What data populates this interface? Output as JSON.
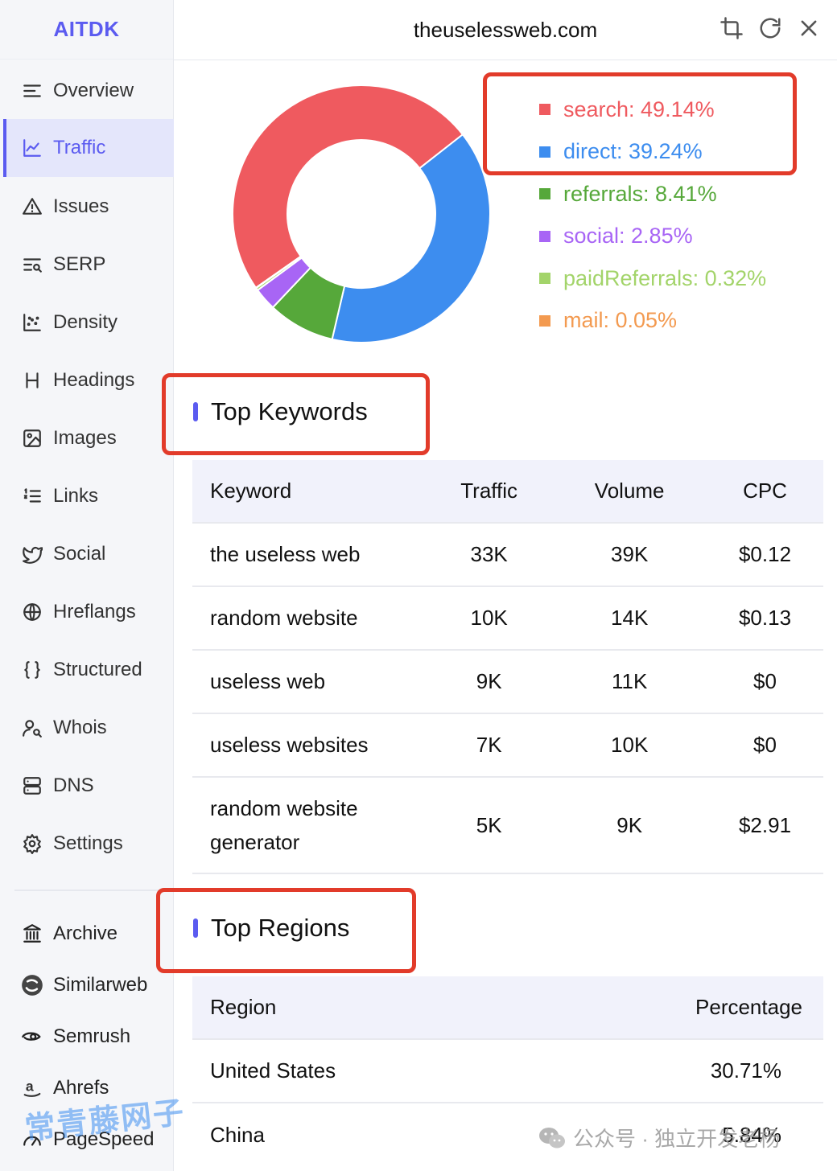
{
  "brand": "AITDK",
  "site": "theuselessweb.com",
  "sidebar": {
    "items": [
      {
        "label": "Overview",
        "icon": "list-icon"
      },
      {
        "label": "Traffic",
        "icon": "line-chart-icon",
        "active": true
      },
      {
        "label": "Issues",
        "icon": "warning-triangle-icon"
      },
      {
        "label": "SERP",
        "icon": "serp-search-icon"
      },
      {
        "label": "Density",
        "icon": "scatter-icon"
      },
      {
        "label": "Headings",
        "icon": "heading-h-icon"
      },
      {
        "label": "Images",
        "icon": "image-icon"
      },
      {
        "label": "Links",
        "icon": "numbered-list-icon"
      },
      {
        "label": "Social",
        "icon": "twitter-bird-icon"
      },
      {
        "label": "Hreflangs",
        "icon": "globe-icon"
      },
      {
        "label": "Structured",
        "icon": "braces-icon"
      },
      {
        "label": "Whois",
        "icon": "user-search-icon"
      },
      {
        "label": "DNS",
        "icon": "server-icon"
      },
      {
        "label": "Settings",
        "icon": "gear-icon"
      }
    ],
    "external": [
      {
        "label": "Archive",
        "icon": "archive-columns-icon"
      },
      {
        "label": "Similarweb",
        "icon": "similarweb-logo-icon"
      },
      {
        "label": "Semrush",
        "icon": "semrush-logo-icon"
      },
      {
        "label": "Ahrefs",
        "icon": "ahrefs-logo-icon"
      },
      {
        "label": "PageSpeed",
        "icon": "pagespeed-icon"
      }
    ]
  },
  "header_icons": [
    "crop-icon",
    "refresh-icon",
    "close-icon"
  ],
  "chart_data": {
    "type": "pie",
    "donut": true,
    "series": [
      {
        "name": "search",
        "value": 49.14,
        "label": "search: 49.14%",
        "color": "#ef5a5f"
      },
      {
        "name": "direct",
        "value": 39.24,
        "label": "direct: 39.24%",
        "color": "#3d8def"
      },
      {
        "name": "referrals",
        "value": 8.41,
        "label": "referrals: 8.41%",
        "color": "#56a83a"
      },
      {
        "name": "social",
        "value": 2.85,
        "label": "social: 2.85%",
        "color": "#a865f5"
      },
      {
        "name": "paidReferrals",
        "value": 0.32,
        "label": "paidReferrals: 0.32%",
        "color": "#a3d46a"
      },
      {
        "name": "mail",
        "value": 0.05,
        "label": "mail: 0.05%",
        "color": "#f39a50"
      }
    ],
    "legend": "right"
  },
  "keywords": {
    "title": "Top Keywords",
    "headers": [
      "Keyword",
      "Traffic",
      "Volume",
      "CPC"
    ],
    "rows": [
      [
        "the useless web",
        "33K",
        "39K",
        "$0.12"
      ],
      [
        "random website",
        "10K",
        "14K",
        "$0.13"
      ],
      [
        "useless web",
        "9K",
        "11K",
        "$0"
      ],
      [
        "useless websites",
        "7K",
        "10K",
        "$0"
      ],
      [
        "random website generator",
        "5K",
        "9K",
        "$2.91"
      ]
    ]
  },
  "regions": {
    "title": "Top Regions",
    "headers": [
      "Region",
      "Percentage"
    ],
    "rows": [
      [
        "United States",
        "30.71%"
      ],
      [
        "China",
        "5.84%"
      ]
    ]
  },
  "watermarks": {
    "left": "常青藤网子",
    "right": "公众号 · 独立开发老杨"
  }
}
